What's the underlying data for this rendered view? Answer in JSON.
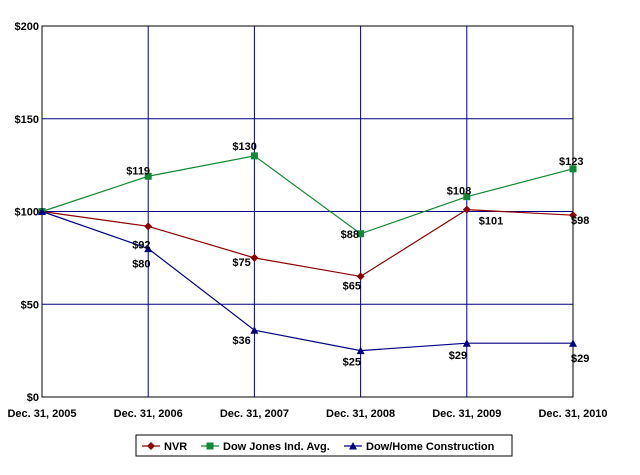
{
  "chart_data": {
    "type": "line",
    "categories": [
      "Dec. 31, 2005",
      "Dec. 31, 2006",
      "Dec. 31, 2007",
      "Dec. 31, 2008",
      "Dec. 31, 2009",
      "Dec. 31, 2010"
    ],
    "ylim": [
      0,
      200
    ],
    "yticks": [
      0,
      50,
      100,
      150,
      200
    ],
    "ytick_labels": [
      "$0",
      "$50",
      "$100",
      "$150",
      "$200"
    ],
    "grid": true,
    "legend_position": "bottom",
    "series": [
      {
        "name": "NVR",
        "color": "#8b0000",
        "marker": "diamond",
        "values": [
          100,
          92,
          75,
          65,
          101,
          98
        ],
        "labels": [
          "",
          "$92",
          "$75",
          "$65",
          "$101",
          "$98"
        ]
      },
      {
        "name": "Dow Jones Ind. Avg.",
        "color": "#118833",
        "marker": "square",
        "values": [
          100,
          119,
          130,
          88,
          108,
          123
        ],
        "labels": [
          "",
          "$119",
          "$130",
          "$88",
          "$108",
          "$123"
        ]
      },
      {
        "name": "Dow/Home Construction",
        "color": "#000080",
        "marker": "triangle",
        "values": [
          100,
          80,
          36,
          25,
          29,
          29
        ],
        "labels": [
          "",
          "$80",
          "$36",
          "$25",
          "$29",
          "$29"
        ]
      }
    ]
  }
}
